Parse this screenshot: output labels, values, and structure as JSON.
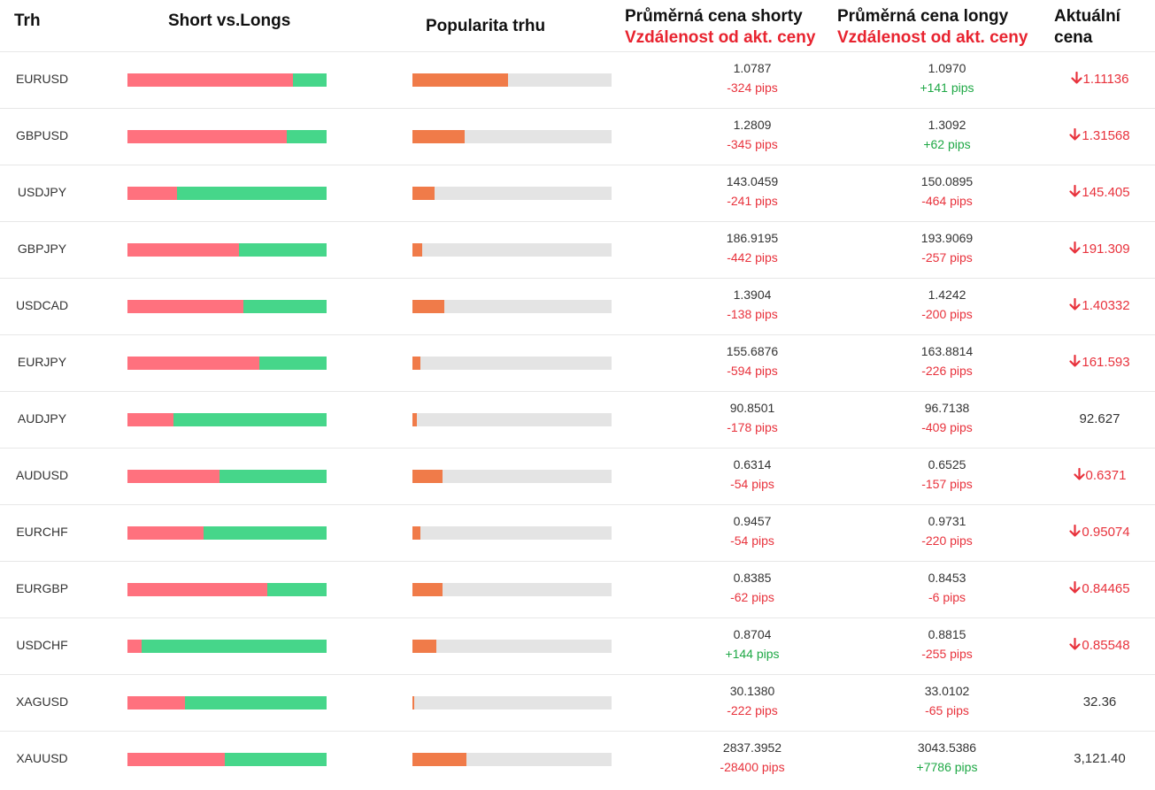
{
  "header": {
    "market": "Trh",
    "short_vs_longs": "Short vs.Longs",
    "popularity": "Popularita trhu",
    "avg_short": "Průměrná cena shorty",
    "avg_short_sub": "Vzdálenost od akt. ceny",
    "avg_long": "Průměrná cena longy",
    "avg_long_sub": "Vzdálenost od akt. ceny",
    "current_line1": "Aktuální",
    "current_line2": "cena"
  },
  "colors": {
    "short_bar": "#ff717e",
    "long_bar": "#46d68a",
    "popularity_fill": "#f07b49",
    "popularity_track": "#e4e4e4",
    "negative": "#e8323c",
    "positive": "#1ea845"
  },
  "rows": [
    {
      "pair": "EURUSD",
      "short_pct": 83,
      "popularity_pct": 48,
      "avg_short": "1.0787",
      "avg_short_dist": "-324 pips",
      "avg_short_dist_sign": "neg",
      "avg_long": "1.0970",
      "avg_long_dist": "+141 pips",
      "avg_long_dist_sign": "pos",
      "current": "1.11136",
      "trend": "down"
    },
    {
      "pair": "GBPUSD",
      "short_pct": 80,
      "popularity_pct": 26,
      "avg_short": "1.2809",
      "avg_short_dist": "-345 pips",
      "avg_short_dist_sign": "neg",
      "avg_long": "1.3092",
      "avg_long_dist": "+62 pips",
      "avg_long_dist_sign": "pos",
      "current": "1.31568",
      "trend": "down"
    },
    {
      "pair": "USDJPY",
      "short_pct": 25,
      "popularity_pct": 11,
      "avg_short": "143.0459",
      "avg_short_dist": "-241 pips",
      "avg_short_dist_sign": "neg",
      "avg_long": "150.0895",
      "avg_long_dist": "-464 pips",
      "avg_long_dist_sign": "neg",
      "current": "145.405",
      "trend": "down"
    },
    {
      "pair": "GBPJPY",
      "short_pct": 56,
      "popularity_pct": 5,
      "avg_short": "186.9195",
      "avg_short_dist": "-442 pips",
      "avg_short_dist_sign": "neg",
      "avg_long": "193.9069",
      "avg_long_dist": "-257 pips",
      "avg_long_dist_sign": "neg",
      "current": "191.309",
      "trend": "down"
    },
    {
      "pair": "USDCAD",
      "short_pct": 58,
      "popularity_pct": 16,
      "avg_short": "1.3904",
      "avg_short_dist": "-138 pips",
      "avg_short_dist_sign": "neg",
      "avg_long": "1.4242",
      "avg_long_dist": "-200 pips",
      "avg_long_dist_sign": "neg",
      "current": "1.40332",
      "trend": "down"
    },
    {
      "pair": "EURJPY",
      "short_pct": 66,
      "popularity_pct": 4,
      "avg_short": "155.6876",
      "avg_short_dist": "-594 pips",
      "avg_short_dist_sign": "neg",
      "avg_long": "163.8814",
      "avg_long_dist": "-226 pips",
      "avg_long_dist_sign": "neg",
      "current": "161.593",
      "trend": "down"
    },
    {
      "pair": "AUDJPY",
      "short_pct": 23,
      "popularity_pct": 2,
      "avg_short": "90.8501",
      "avg_short_dist": "-178 pips",
      "avg_short_dist_sign": "neg",
      "avg_long": "96.7138",
      "avg_long_dist": "-409 pips",
      "avg_long_dist_sign": "neg",
      "current": "92.627",
      "trend": "none"
    },
    {
      "pair": "AUDUSD",
      "short_pct": 46,
      "popularity_pct": 15,
      "avg_short": "0.6314",
      "avg_short_dist": "-54 pips",
      "avg_short_dist_sign": "neg",
      "avg_long": "0.6525",
      "avg_long_dist": "-157 pips",
      "avg_long_dist_sign": "neg",
      "current": "0.6371",
      "trend": "down"
    },
    {
      "pair": "EURCHF",
      "short_pct": 38,
      "popularity_pct": 4,
      "avg_short": "0.9457",
      "avg_short_dist": "-54 pips",
      "avg_short_dist_sign": "neg",
      "avg_long": "0.9731",
      "avg_long_dist": "-220 pips",
      "avg_long_dist_sign": "neg",
      "current": "0.95074",
      "trend": "down"
    },
    {
      "pair": "EURGBP",
      "short_pct": 70,
      "popularity_pct": 15,
      "avg_short": "0.8385",
      "avg_short_dist": "-62 pips",
      "avg_short_dist_sign": "neg",
      "avg_long": "0.8453",
      "avg_long_dist": "-6 pips",
      "avg_long_dist_sign": "neg",
      "current": "0.84465",
      "trend": "down"
    },
    {
      "pair": "USDCHF",
      "short_pct": 7,
      "popularity_pct": 12,
      "avg_short": "0.8704",
      "avg_short_dist": "+144 pips",
      "avg_short_dist_sign": "pos",
      "avg_long": "0.8815",
      "avg_long_dist": "-255 pips",
      "avg_long_dist_sign": "neg",
      "current": "0.85548",
      "trend": "down"
    },
    {
      "pair": "XAGUSD",
      "short_pct": 29,
      "popularity_pct": 1,
      "avg_short": "30.1380",
      "avg_short_dist": "-222 pips",
      "avg_short_dist_sign": "neg",
      "avg_long": "33.0102",
      "avg_long_dist": "-65 pips",
      "avg_long_dist_sign": "neg",
      "current": "32.36",
      "trend": "none"
    },
    {
      "pair": "XAUUSD",
      "short_pct": 49,
      "popularity_pct": 27,
      "avg_short": "2837.3952",
      "avg_short_dist": "-28400 pips",
      "avg_short_dist_sign": "neg",
      "avg_long": "3043.5386",
      "avg_long_dist": "+7786 pips",
      "avg_long_dist_sign": "pos",
      "current": "3,121.40",
      "trend": "none"
    }
  ]
}
